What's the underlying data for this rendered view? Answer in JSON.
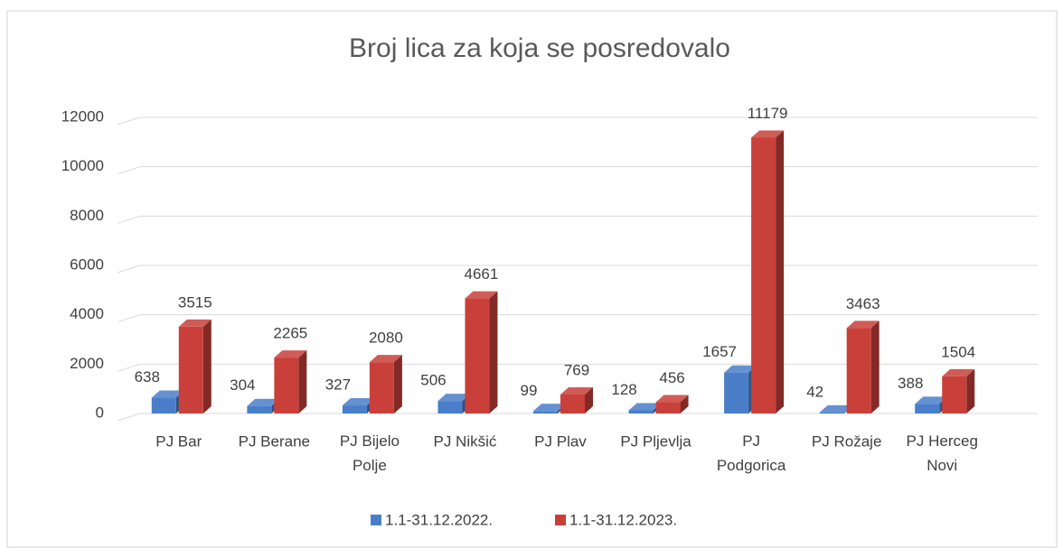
{
  "chart_data": {
    "type": "bar3d",
    "title": "Broj lica za koja se posredovalo",
    "categories": [
      "PJ Bar",
      "PJ Berane",
      "PJ Bijelo Polje",
      "PJ Nikšić",
      "PJ Plav",
      "PJ Pljevlja",
      "PJ Podgorica",
      "PJ Rožaje",
      "PJ Herceg Novi"
    ],
    "series": [
      {
        "name": "1.1-31.12.2022.",
        "color": "#4a7ec9",
        "values": [
          638,
          304,
          327,
          506,
          99,
          128,
          1657,
          42,
          388
        ]
      },
      {
        "name": "1.1-31.12.2023.",
        "color": "#c9403a",
        "values": [
          3515,
          2265,
          2080,
          4661,
          769,
          456,
          11179,
          3463,
          1504
        ]
      }
    ],
    "ylim": [
      0,
      12000
    ],
    "yticks": [
      0,
      2000,
      4000,
      6000,
      8000,
      10000,
      12000
    ],
    "grid": true,
    "legend": "bottom"
  }
}
